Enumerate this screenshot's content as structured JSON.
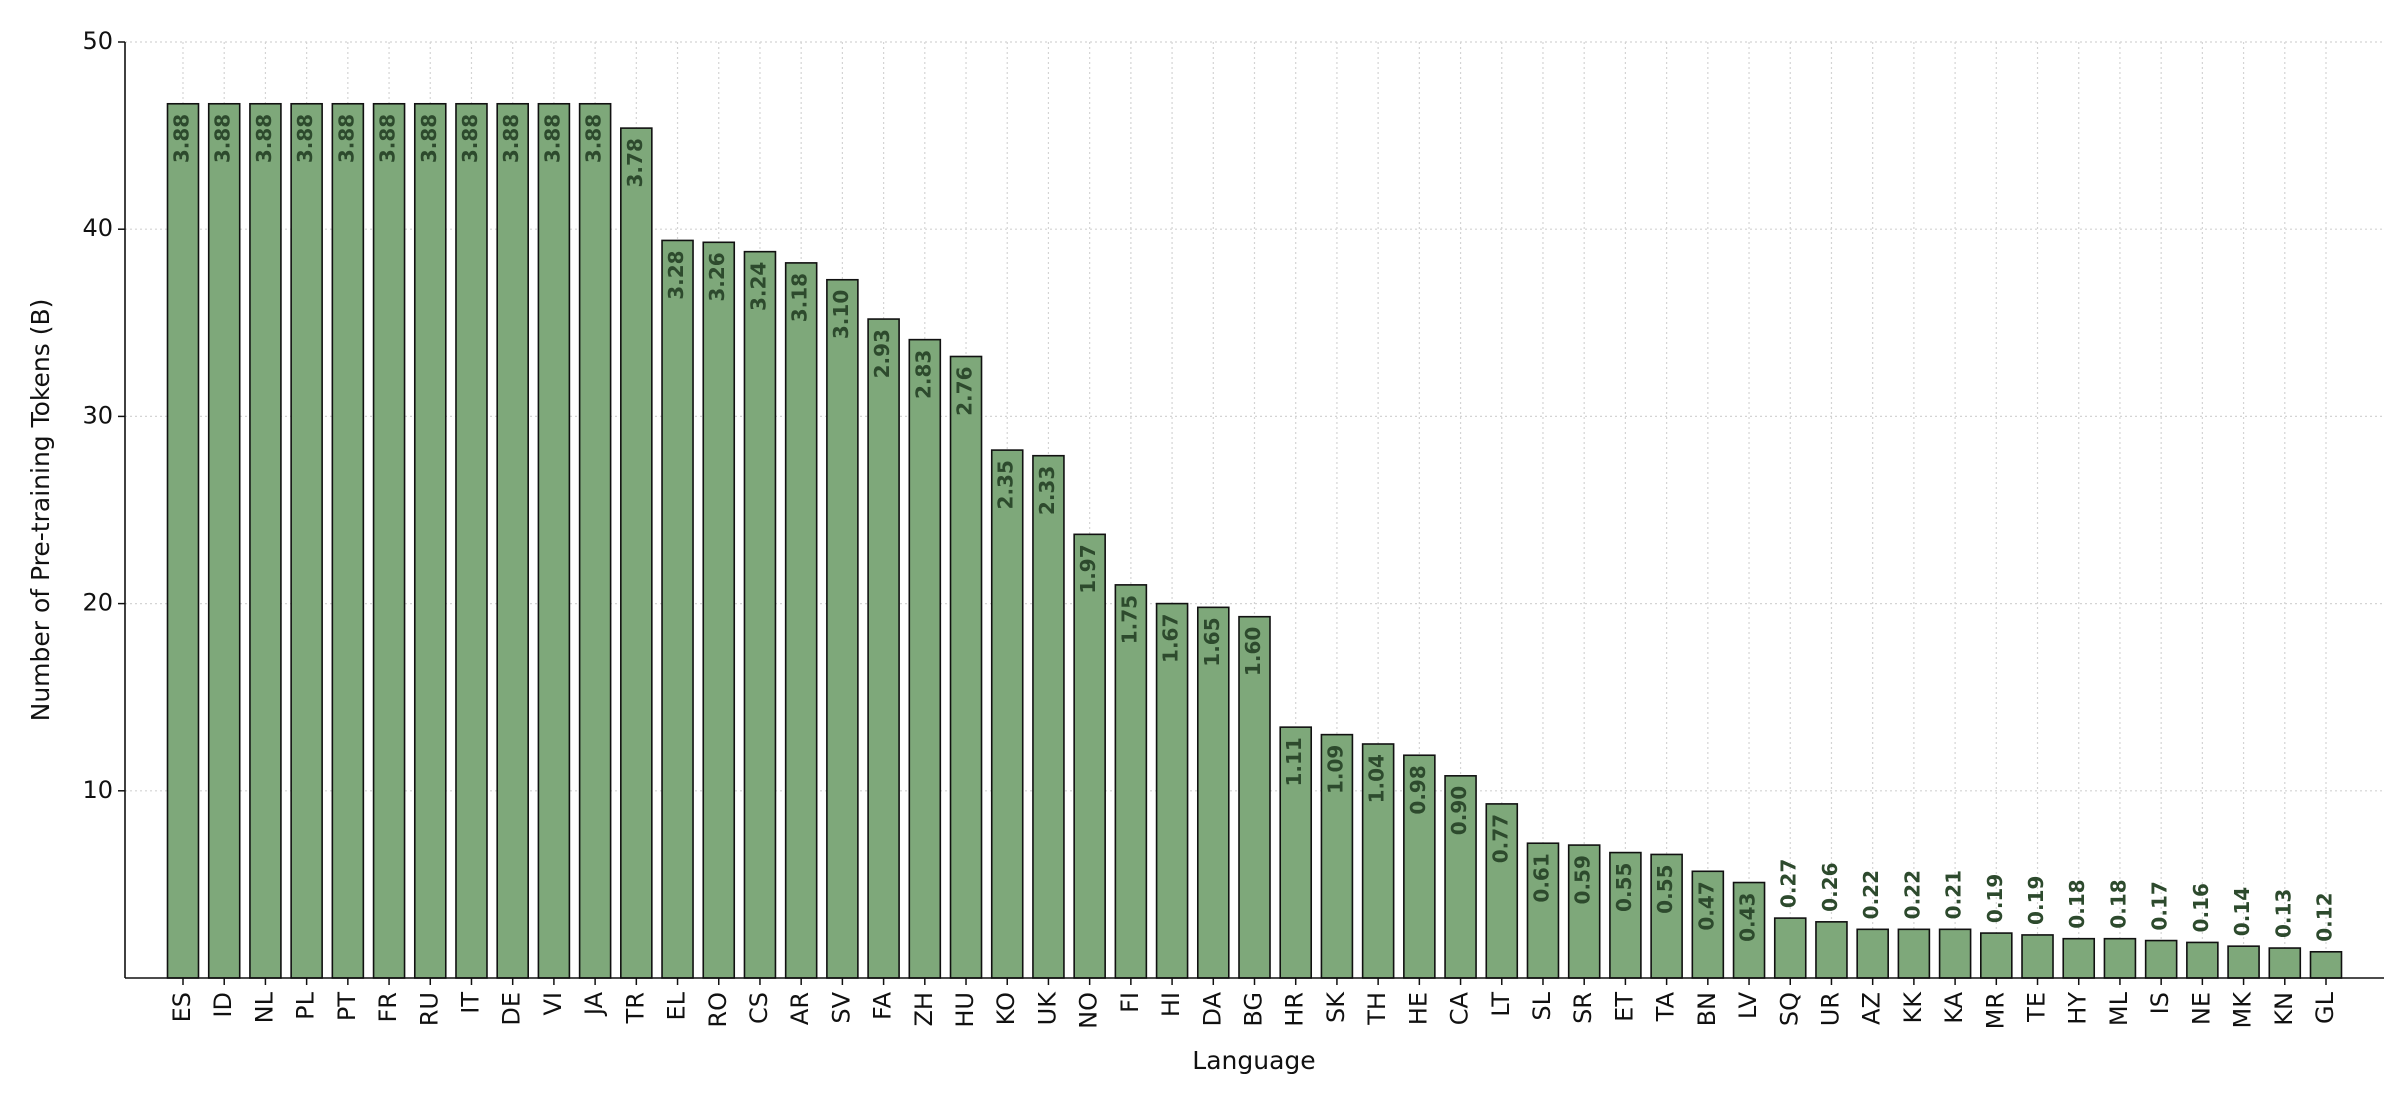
{
  "chart_data": {
    "type": "bar",
    "x_label": "Language",
    "y_label": "Number of Pre-training Tokens (B)",
    "categories": [
      "ES",
      "ID",
      "NL",
      "PL",
      "PT",
      "FR",
      "RU",
      "IT",
      "DE",
      "VI",
      "JA",
      "TR",
      "EL",
      "RO",
      "CS",
      "AR",
      "SV",
      "FA",
      "ZH",
      "HU",
      "KO",
      "UK",
      "NO",
      "FI",
      "HI",
      "DA",
      "BG",
      "HR",
      "SK",
      "TH",
      "HE",
      "CA",
      "LT",
      "SL",
      "SR",
      "ET",
      "TA",
      "BN",
      "LV",
      "SQ",
      "UR",
      "AZ",
      "KK",
      "KA",
      "MR",
      "TE",
      "HY",
      "ML",
      "IS",
      "NE",
      "MK",
      "KN",
      "GL"
    ],
    "values": [
      46.7,
      46.7,
      46.7,
      46.7,
      46.7,
      46.7,
      46.7,
      46.7,
      46.7,
      46.7,
      46.7,
      45.4,
      39.4,
      39.3,
      38.8,
      38.2,
      37.3,
      35.2,
      34.1,
      33.2,
      28.2,
      27.9,
      23.7,
      21.0,
      20.0,
      19.8,
      19.3,
      13.4,
      13.0,
      12.5,
      11.9,
      10.8,
      9.3,
      7.2,
      7.1,
      6.7,
      6.6,
      5.7,
      5.1,
      3.2,
      3.0,
      2.6,
      2.6,
      2.6,
      2.4,
      2.3,
      2.1,
      2.1,
      2.0,
      1.9,
      1.7,
      1.6,
      1.4
    ],
    "bar_labels": [
      "3.88",
      "3.88",
      "3.88",
      "3.88",
      "3.88",
      "3.88",
      "3.88",
      "3.88",
      "3.88",
      "3.88",
      "3.88",
      "3.78",
      "3.28",
      "3.26",
      "3.24",
      "3.18",
      "3.10",
      "2.93",
      "2.83",
      "2.76",
      "2.35",
      "2.33",
      "1.97",
      "1.75",
      "1.67",
      "1.65",
      "1.60",
      "1.11",
      "1.09",
      "1.04",
      "0.98",
      "0.90",
      "0.77",
      "0.61",
      "0.59",
      "0.55",
      "0.55",
      "0.47",
      "0.43",
      "0.27",
      "0.26",
      "0.22",
      "0.22",
      "0.21",
      "0.19",
      "0.19",
      "0.18",
      "0.18",
      "0.17",
      "0.16",
      "0.14",
      "0.13",
      "0.12"
    ],
    "color": "#7ea87a",
    "label_color": "#2d4a2d",
    "ylim": [
      0,
      50
    ],
    "yticks": [
      10,
      20,
      30,
      40,
      50
    ],
    "grid": true
  }
}
